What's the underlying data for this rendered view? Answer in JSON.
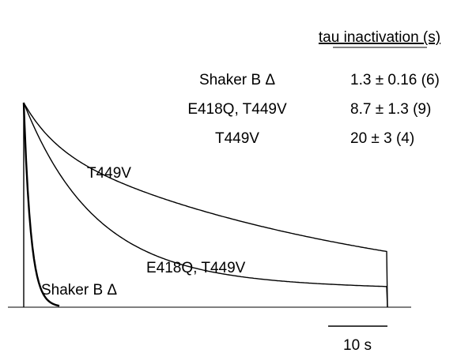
{
  "table": {
    "header": "tau inactivation (s)",
    "rows": [
      [
        "Shaker B Δ",
        "1.3 ± 0.16 (6)"
      ],
      [
        "E418Q, T449V",
        "8.7 ± 1.3 (9)"
      ],
      [
        "T449V",
        "20 ± 3 (4)"
      ]
    ]
  },
  "traces": {
    "labels": [
      "T449V",
      "E418Q, T449V",
      "Shaker B Δ"
    ],
    "scale_bar": "10 s"
  }
}
